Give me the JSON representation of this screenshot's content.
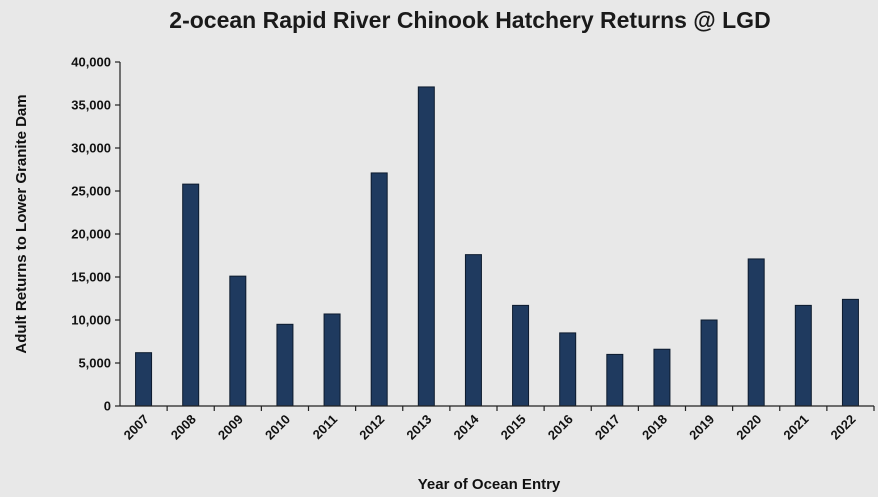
{
  "chart_data": {
    "type": "bar",
    "title": "2-ocean Rapid River Chinook Hatchery Returns @ LGD",
    "xlabel": "Year of Ocean Entry",
    "ylabel": "Adult Returns to Lower Granite Dam",
    "categories": [
      "2007",
      "2008",
      "2009",
      "2010",
      "2011",
      "2012",
      "2013",
      "2014",
      "2015",
      "2016",
      "2017",
      "2018",
      "2019",
      "2020",
      "2021",
      "2022"
    ],
    "values": [
      6200,
      25800,
      15100,
      9500,
      10700,
      27100,
      37100,
      17600,
      11700,
      8500,
      6000,
      6600,
      10000,
      17100,
      11700,
      12400
    ],
    "ylim": [
      0,
      40000
    ],
    "yticks": [
      0,
      5000,
      10000,
      15000,
      20000,
      25000,
      30000,
      35000,
      40000
    ],
    "ytick_labels": [
      "0",
      "5,000",
      "10,000",
      "15,000",
      "20,000",
      "25,000",
      "30,000",
      "35,000",
      "40,000"
    ],
    "grid": false,
    "legend": "none",
    "bar_color": "#1f3a5f"
  }
}
